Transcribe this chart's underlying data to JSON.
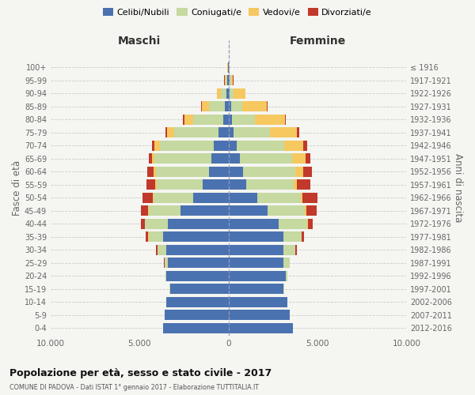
{
  "age_groups": [
    "0-4",
    "5-9",
    "10-14",
    "15-19",
    "20-24",
    "25-29",
    "30-34",
    "35-39",
    "40-44",
    "45-49",
    "50-54",
    "55-59",
    "60-64",
    "65-69",
    "70-74",
    "75-79",
    "80-84",
    "85-89",
    "90-94",
    "95-99",
    "100+"
  ],
  "birth_years": [
    "2012-2016",
    "2007-2011",
    "2002-2006",
    "1997-2001",
    "1992-1996",
    "1987-1991",
    "1982-1986",
    "1977-1981",
    "1972-1976",
    "1967-1971",
    "1962-1966",
    "1957-1961",
    "1952-1956",
    "1947-1951",
    "1942-1946",
    "1937-1941",
    "1932-1936",
    "1927-1931",
    "1922-1926",
    "1917-1921",
    "≤ 1916"
  ],
  "males": {
    "celibi": [
      3700,
      3600,
      3500,
      3300,
      3500,
      3400,
      3500,
      3700,
      3400,
      2700,
      2000,
      1450,
      1100,
      950,
      850,
      550,
      300,
      200,
      100,
      80,
      30
    ],
    "coniugati": [
      0,
      0,
      0,
      5,
      50,
      200,
      500,
      800,
      1300,
      1800,
      2200,
      2600,
      3000,
      3200,
      3000,
      2500,
      1700,
      900,
      350,
      100,
      20
    ],
    "vedovi": [
      0,
      0,
      0,
      0,
      5,
      5,
      5,
      10,
      20,
      40,
      50,
      60,
      100,
      150,
      300,
      400,
      500,
      400,
      200,
      50,
      5
    ],
    "divorziati": [
      0,
      0,
      0,
      0,
      10,
      40,
      80,
      150,
      200,
      400,
      600,
      500,
      350,
      200,
      150,
      100,
      50,
      30,
      10,
      5,
      2
    ]
  },
  "females": {
    "nubili": [
      3600,
      3450,
      3300,
      3100,
      3200,
      3100,
      3100,
      3100,
      2800,
      2200,
      1600,
      1000,
      800,
      640,
      460,
      270,
      180,
      130,
      70,
      55,
      22
    ],
    "coniugate": [
      0,
      0,
      0,
      8,
      90,
      320,
      650,
      1000,
      1600,
      2100,
      2450,
      2650,
      2950,
      2950,
      2650,
      2050,
      1300,
      640,
      220,
      70,
      12
    ],
    "vedove": [
      0,
      0,
      0,
      0,
      4,
      4,
      8,
      18,
      45,
      70,
      90,
      180,
      460,
      750,
      1100,
      1500,
      1700,
      1400,
      650,
      130,
      8
    ],
    "divorziate": [
      0,
      0,
      0,
      0,
      8,
      28,
      75,
      140,
      280,
      570,
      850,
      750,
      480,
      240,
      190,
      140,
      55,
      25,
      8,
      4,
      2
    ]
  },
  "colors": {
    "celibi": "#4A72B0",
    "coniugati": "#C5D9A0",
    "vedovi": "#F5C860",
    "divorziati": "#C0392B"
  },
  "xlim": 10000,
  "title": "Popolazione per età, sesso e stato civile - 2017",
  "subtitle": "COMUNE DI PADOVA - Dati ISTAT 1° gennaio 2017 - Elaborazione TUTTITALIA.IT",
  "xlabel_left": "Maschi",
  "xlabel_right": "Femmine",
  "ylabel_left": "Fasce di età",
  "ylabel_right": "Anni di nascita",
  "background_color": "#f5f5f2",
  "legend_labels": [
    "Celibi/Nubili",
    "Coniugati/e",
    "Vedovi/e",
    "Divorziati/e"
  ]
}
